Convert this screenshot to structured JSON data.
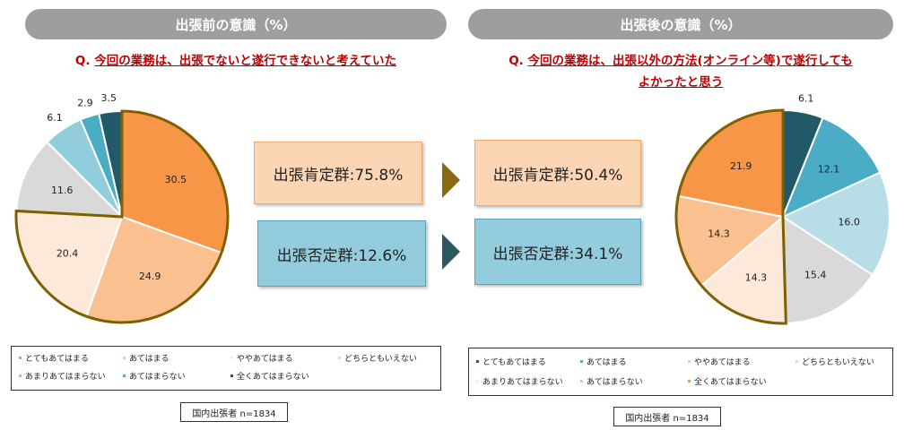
{
  "left": {
    "header": "出張前の意識（%）",
    "question_prefix": "Q.",
    "question_line1": "今回の業務は、出張でないと遂行できないと考えていた",
    "note": "国内出張者 n=1834"
  },
  "right": {
    "header": "出張後の意識（%）",
    "question_prefix": "Q.",
    "question_line1": "今回の業務は、出張以外の方法(オンライン等)で遂行しても",
    "question_line2": "よかったと思う",
    "note": "国内出張者 n=1834"
  },
  "summary": {
    "before_positive": "出張肯定群:75.8%",
    "before_negative": "出張否定群:12.6%",
    "after_positive": "出張肯定群:50.4%",
    "after_negative": "出張否定群:34.1%"
  },
  "colors": {
    "c1": "#f79646",
    "c2": "#fac090",
    "c3": "#fde9d9",
    "c4": "#d9d9d9",
    "c5": "#92cddc",
    "c6": "#4bacc6",
    "c7": "#215968",
    "c6r": "#b7dee8",
    "highlight": "#7f6000",
    "arrow1": "#8b6914",
    "arrow2": "#2e5764",
    "box_pos": "#fcd5b5",
    "box_neg": "#93cddd"
  },
  "chart_data": [
    {
      "type": "pie",
      "title": "出張前の意識（%）",
      "categories": [
        "とてもあてはまる",
        "あてはまる",
        "ややあてはまる",
        "どちらともいえない",
        "あまりあてはまらない",
        "あてはまらない",
        "全くあてはまらない"
      ],
      "values": [
        30.5,
        24.9,
        20.4,
        11.6,
        6.1,
        2.9,
        3.5
      ],
      "colors": [
        "#f79646",
        "#fac090",
        "#fde9d9",
        "#d9d9d9",
        "#92cddc",
        "#4bacc6",
        "#215968"
      ]
    },
    {
      "type": "pie",
      "title": "出張後の意識（%）",
      "categories": [
        "とてもあてはまる",
        "あてはまる",
        "ややあてはまる",
        "どちらともいえない",
        "あまりあてはまらない",
        "あてはまらない",
        "全くあてはまらない"
      ],
      "values": [
        6.1,
        12.1,
        16.0,
        15.4,
        14.3,
        14.3,
        21.9
      ],
      "colors": [
        "#215968",
        "#4bacc6",
        "#b7dee8",
        "#d9d9d9",
        "#fde9d9",
        "#fac090",
        "#f79646"
      ]
    }
  ],
  "legend_left": [
    {
      "label": "とてもあてはまる",
      "color": "#f79646"
    },
    {
      "label": "あてはまる",
      "color": "#fac090"
    },
    {
      "label": "ややあてはまる",
      "color": "#fde9d9"
    },
    {
      "label": "どちらともいえない",
      "color": "#d9d9d9"
    },
    {
      "label": "あまりあてはまらない",
      "color": "#92cddc"
    },
    {
      "label": "あてはまらない",
      "color": "#4bacc6"
    },
    {
      "label": "全くあてはまらない",
      "color": "#215968"
    }
  ],
  "legend_right": [
    {
      "label": "とてもあてはまる",
      "color": "#215968"
    },
    {
      "label": "あてはまる",
      "color": "#4bacc6"
    },
    {
      "label": "ややあてはまる",
      "color": "#b7dee8"
    },
    {
      "label": "どちらともいえない",
      "color": "#d9d9d9"
    },
    {
      "label": "あまりあてはまらない",
      "color": "#fde9d9"
    },
    {
      "label": "あてはまらない",
      "color": "#fac090"
    },
    {
      "label": "全くあてはまらない",
      "color": "#f79646"
    }
  ]
}
